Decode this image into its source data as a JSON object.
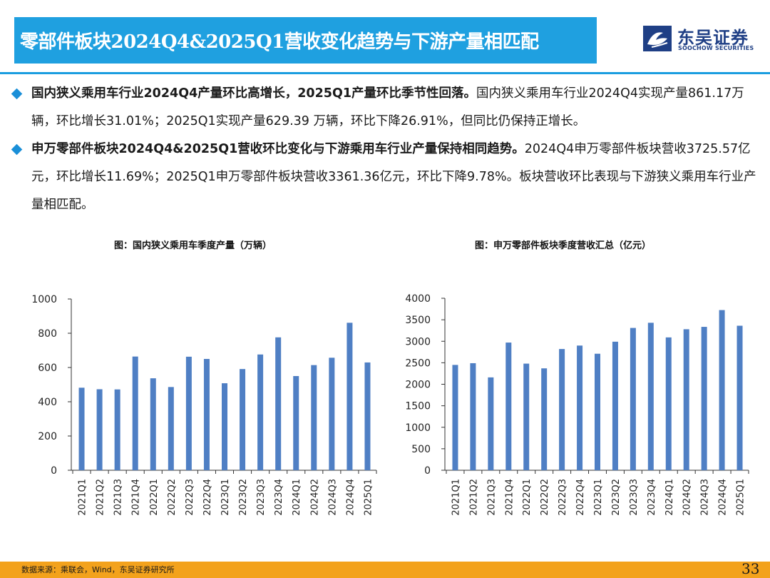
{
  "header": {
    "title": "零部件板块2024Q4&2025Q1营收变化趋势与下游产量相匹配",
    "logo": {
      "name_cn": "东吴证券",
      "name_en": "SOOCHOW SECURITIES",
      "brand_color": "#1f3f85"
    }
  },
  "bullets": [
    {
      "lead": "国内狭义乘用车行业2024Q4产量环比高增长，2025Q1产量环比季节性回落。",
      "body": "国内狭义乘用车行业2024Q4实现产量861.17万辆，环比增长31.01%；2025Q1实现产量629.39 万辆，环比下降26.91%，但同比仍保持正增长。"
    },
    {
      "lead": "申万零部件板块2024Q4&2025Q1营收环比变化与下游乘用车行业产量保持相同趋势。",
      "body": "2024Q4申万零部件板块营收3725.57亿元，环比增长11.69%；2025Q1申万零部件板块营收3361.36亿元，环比下降9.78%。板块营收环比表现与下游狭义乘用车行业产量相匹配。"
    }
  ],
  "chart_data": [
    {
      "type": "bar",
      "title": "图：国内狭义乘用车季度产量（万辆）",
      "categories": [
        "2021Q1",
        "2021Q2",
        "2021Q3",
        "2021Q4",
        "2022Q1",
        "2022Q2",
        "2022Q3",
        "2022Q4",
        "2023Q1",
        "2023Q2",
        "2023Q3",
        "2023Q4",
        "2024Q1",
        "2024Q2",
        "2024Q3",
        "2024Q4",
        "2025Q1"
      ],
      "values": [
        482,
        473,
        472,
        664,
        537,
        486,
        663,
        650,
        508,
        591,
        676,
        776,
        550,
        614,
        657,
        861.17,
        629.39
      ],
      "ylim": [
        0,
        1000
      ],
      "yticks": [
        "0",
        "200",
        "400",
        "600",
        "800",
        "1000"
      ],
      "grid": false,
      "legend": "none",
      "bar_color": "#4f7fc4"
    },
    {
      "type": "bar",
      "title": "图：申万零部件板块季度营收汇总（亿元）",
      "categories": [
        "2021Q1",
        "2021Q2",
        "2021Q3",
        "2021Q4",
        "2022Q1",
        "2022Q2",
        "2022Q3",
        "2022Q4",
        "2023Q1",
        "2023Q2",
        "2023Q3",
        "2023Q4",
        "2024Q1",
        "2024Q2",
        "2024Q3",
        "2024Q4",
        "2025Q1"
      ],
      "values": [
        2450,
        2490,
        2160,
        2970,
        2480,
        2370,
        2820,
        2900,
        2710,
        2990,
        3310,
        3430,
        3090,
        3280,
        3335,
        3725.57,
        3361.36
      ],
      "ylim": [
        0,
        4000
      ],
      "yticks": [
        "0",
        "500",
        "1000",
        "1500",
        "2000",
        "2500",
        "3000",
        "3500",
        "4000"
      ],
      "grid": false,
      "legend": "none",
      "bar_color": "#4f7fc4"
    }
  ],
  "footer": {
    "source": "数据来源：乘联会，Wind，东吴证券研究所",
    "page": "33"
  },
  "colors": {
    "title_bar": "#1fa0e0",
    "rule": "#1a9de0",
    "footer_bar": "#f3a21c",
    "bullet": "#1a8fd8"
  }
}
